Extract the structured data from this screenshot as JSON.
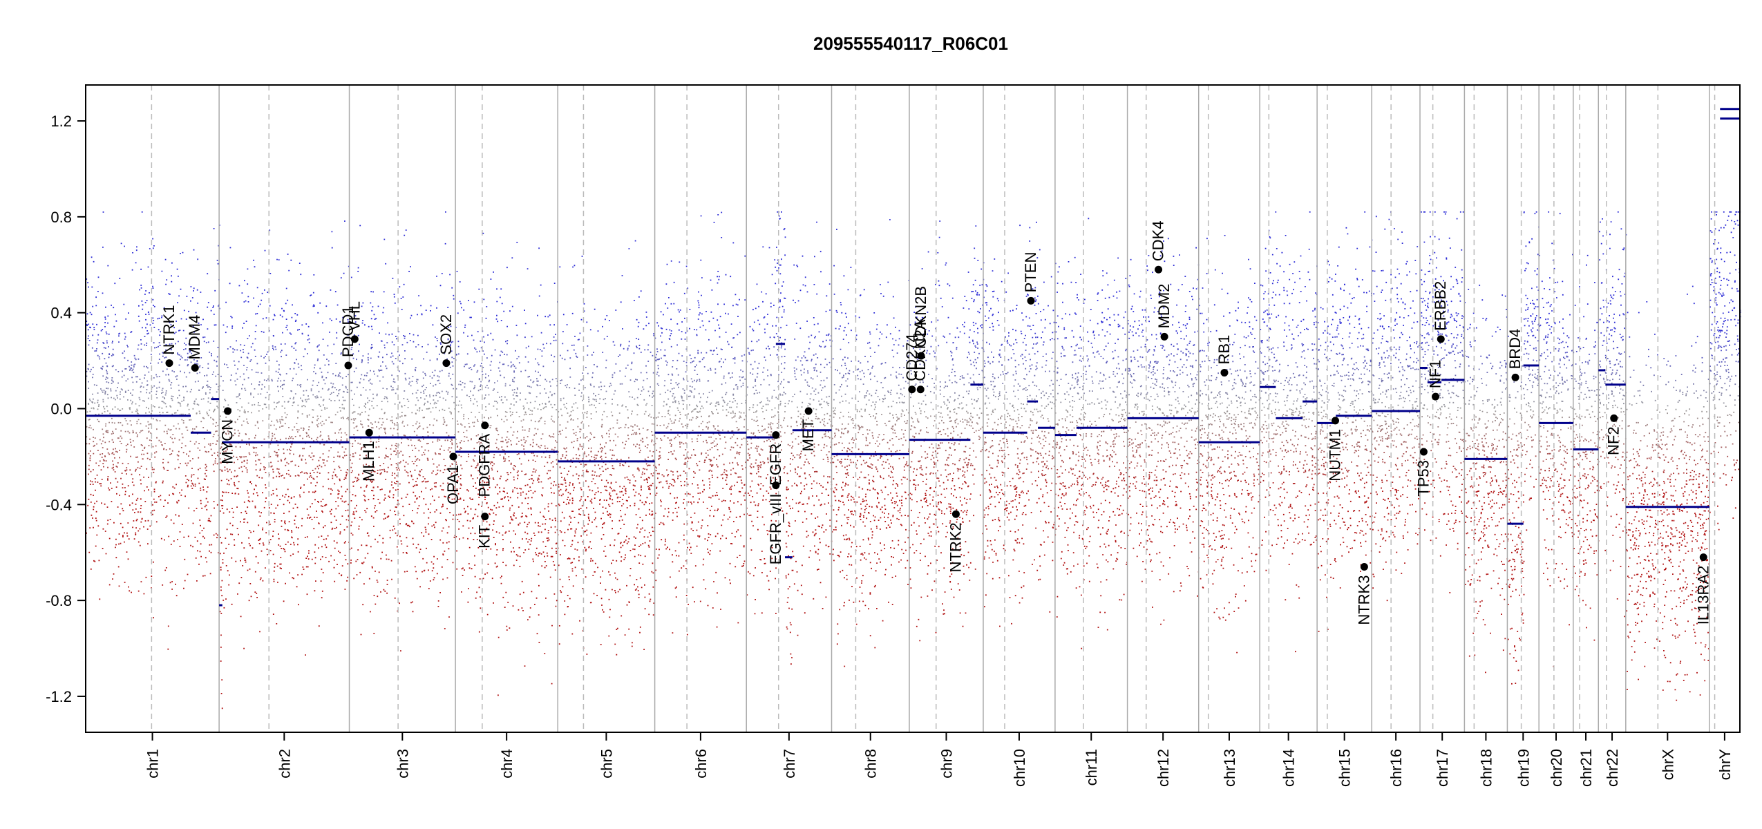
{
  "chart_data": {
    "type": "scatter",
    "title": "209555540117_R06C01",
    "xlabel": "",
    "ylabel": "",
    "ylim": [
      -1.35,
      1.35
    ],
    "y_ticks": [
      -1.2,
      -0.8,
      -0.4,
      0.0,
      0.4,
      0.8,
      1.2
    ],
    "y_tick_labels": [
      "-1.2",
      "-0.8",
      "-0.4",
      "0.0",
      "0.4",
      "0.8",
      "1.2"
    ],
    "colors": {
      "gain": "#2b2bd6",
      "loss": "#b01010",
      "neutral": "#9a9a9a",
      "segment": "#00008b",
      "gene_point": "#000000",
      "border": "#000000",
      "chrom_line": "#aaaaaa",
      "centromere_line": "#bbbbbb"
    },
    "chromosomes": [
      {
        "name": "chr1",
        "size": 249,
        "centromere": 123,
        "segments": [
          {
            "start": 0,
            "end": 196,
            "value": -0.03
          },
          {
            "start": 196,
            "end": 234,
            "value": -0.1
          },
          {
            "start": 234,
            "end": 249,
            "value": 0.04
          }
        ]
      },
      {
        "name": "chr2",
        "size": 243,
        "centromere": 93,
        "segments": [
          {
            "start": 0,
            "end": 6,
            "value": -0.82
          },
          {
            "start": 6,
            "end": 243,
            "value": -0.14
          }
        ]
      },
      {
        "name": "chr3",
        "size": 198,
        "centromere": 91,
        "segments": [
          {
            "start": 0,
            "end": 198,
            "value": -0.12
          }
        ]
      },
      {
        "name": "chr4",
        "size": 191,
        "centromere": 50,
        "segments": [
          {
            "start": 0,
            "end": 191,
            "value": -0.18
          }
        ]
      },
      {
        "name": "chr5",
        "size": 181,
        "centromere": 48,
        "segments": [
          {
            "start": 0,
            "end": 181,
            "value": -0.22
          }
        ]
      },
      {
        "name": "chr6",
        "size": 171,
        "centromere": 60,
        "segments": [
          {
            "start": 0,
            "end": 171,
            "value": -0.1
          }
        ]
      },
      {
        "name": "chr7",
        "size": 159,
        "centromere": 60,
        "segments": [
          {
            "start": 0,
            "end": 55,
            "value": -0.12
          },
          {
            "start": 55,
            "end": 72,
            "value": 0.27
          },
          {
            "start": 72,
            "end": 86,
            "value": -0.62
          },
          {
            "start": 86,
            "end": 159,
            "value": -0.09
          }
        ]
      },
      {
        "name": "chr8",
        "size": 145,
        "centromere": 45,
        "segments": [
          {
            "start": 0,
            "end": 145,
            "value": -0.19
          }
        ]
      },
      {
        "name": "chr9",
        "size": 138,
        "centromere": 50,
        "segments": [
          {
            "start": 0,
            "end": 114,
            "value": -0.13
          },
          {
            "start": 114,
            "end": 138,
            "value": 0.1
          }
        ]
      },
      {
        "name": "chr10",
        "size": 134,
        "centromere": 40,
        "segments": [
          {
            "start": 0,
            "end": 82,
            "value": -0.1
          },
          {
            "start": 82,
            "end": 102,
            "value": 0.03
          },
          {
            "start": 102,
            "end": 134,
            "value": -0.08
          }
        ]
      },
      {
        "name": "chr11",
        "size": 135,
        "centromere": 53,
        "segments": [
          {
            "start": 0,
            "end": 40,
            "value": -0.11
          },
          {
            "start": 40,
            "end": 135,
            "value": -0.08
          }
        ]
      },
      {
        "name": "chr12",
        "size": 133,
        "centromere": 35,
        "segments": [
          {
            "start": 0,
            "end": 133,
            "value": -0.04
          }
        ]
      },
      {
        "name": "chr13",
        "size": 114,
        "centromere": 18,
        "segments": [
          {
            "start": 0,
            "end": 114,
            "value": -0.14
          }
        ]
      },
      {
        "name": "chr14",
        "size": 107,
        "centromere": 17,
        "segments": [
          {
            "start": 0,
            "end": 30,
            "value": 0.09
          },
          {
            "start": 30,
            "end": 80,
            "value": -0.04
          },
          {
            "start": 80,
            "end": 107,
            "value": 0.03
          }
        ]
      },
      {
        "name": "chr15",
        "size": 102,
        "centromere": 19,
        "segments": [
          {
            "start": 0,
            "end": 35,
            "value": -0.06
          },
          {
            "start": 35,
            "end": 102,
            "value": -0.03
          }
        ]
      },
      {
        "name": "chr16",
        "size": 90,
        "centromere": 36,
        "segments": [
          {
            "start": 0,
            "end": 90,
            "value": -0.01
          }
        ]
      },
      {
        "name": "chr17",
        "size": 83,
        "centromere": 24,
        "segments": [
          {
            "start": 0,
            "end": 14,
            "value": 0.17
          },
          {
            "start": 14,
            "end": 40,
            "value": 0.11
          },
          {
            "start": 40,
            "end": 83,
            "value": 0.12
          }
        ]
      },
      {
        "name": "chr18",
        "size": 80,
        "centromere": 18,
        "segments": [
          {
            "start": 0,
            "end": 80,
            "value": -0.21
          }
        ]
      },
      {
        "name": "chr19",
        "size": 59,
        "centromere": 26,
        "segments": [
          {
            "start": 0,
            "end": 30,
            "value": -0.48
          },
          {
            "start": 30,
            "end": 59,
            "value": 0.18
          }
        ]
      },
      {
        "name": "chr20",
        "size": 64,
        "centromere": 28,
        "segments": [
          {
            "start": 0,
            "end": 64,
            "value": -0.06
          }
        ]
      },
      {
        "name": "chr21",
        "size": 47,
        "centromere": 12,
        "segments": [
          {
            "start": 0,
            "end": 47,
            "value": -0.17
          }
        ]
      },
      {
        "name": "chr22",
        "size": 51,
        "centromere": 15,
        "segments": [
          {
            "start": 0,
            "end": 13,
            "value": 0.16
          },
          {
            "start": 13,
            "end": 51,
            "value": 0.1
          }
        ]
      },
      {
        "name": "chrX",
        "size": 156,
        "centromere": 60,
        "segments": [
          {
            "start": 0,
            "end": 156,
            "value": -0.41
          }
        ]
      },
      {
        "name": "chrY",
        "size": 57,
        "centromere": 10,
        "segments": [
          {
            "start": 20,
            "end": 57,
            "value": 1.21
          },
          {
            "start": 20,
            "end": 57,
            "value": 1.25
          }
        ]
      }
    ],
    "genes": [
      {
        "name": "NTRK1",
        "chrom": "chr1",
        "pos": 156,
        "value": 0.19,
        "label_side": "above"
      },
      {
        "name": "MDM4",
        "chrom": "chr1",
        "pos": 204,
        "value": 0.17,
        "label_side": "above"
      },
      {
        "name": "MYCN",
        "chrom": "chr2",
        "pos": 16,
        "value": -0.01,
        "label_side": "below"
      },
      {
        "name": "PDCD1",
        "chrom": "chr2",
        "pos": 241,
        "value": 0.18,
        "label_side": "above"
      },
      {
        "name": "VHL",
        "chrom": "chr3",
        "pos": 10,
        "value": 0.29,
        "label_side": "above"
      },
      {
        "name": "MLH1",
        "chrom": "chr3",
        "pos": 37,
        "value": -0.1,
        "label_side": "below"
      },
      {
        "name": "SOX2",
        "chrom": "chr3",
        "pos": 181,
        "value": 0.19,
        "label_side": "above"
      },
      {
        "name": "OPA1",
        "chrom": "chr3",
        "pos": 194,
        "value": -0.2,
        "label_side": "below"
      },
      {
        "name": "PDGFRA",
        "chrom": "chr4",
        "pos": 55,
        "value": -0.07,
        "label_side": "below"
      },
      {
        "name": "KIT",
        "chrom": "chr4",
        "pos": 55,
        "value": -0.45,
        "label_side": "below"
      },
      {
        "name": "EGFR",
        "chrom": "chr7",
        "pos": 55,
        "value": -0.11,
        "label_side": "below"
      },
      {
        "name": "EGFR_vIII",
        "chrom": "chr7",
        "pos": 55,
        "value": -0.32,
        "label_side": "below"
      },
      {
        "name": "MET",
        "chrom": "chr7",
        "pos": 116,
        "value": -0.01,
        "label_side": "below"
      },
      {
        "name": "CD274",
        "chrom": "chr9",
        "pos": 5,
        "value": 0.08,
        "label_side": "above"
      },
      {
        "name": "CDKN2A",
        "chrom": "chr9",
        "pos": 21,
        "value": 0.08,
        "label_side": "above"
      },
      {
        "name": "CDKN2B",
        "chrom": "chr9",
        "pos": 22,
        "value": 0.22,
        "label_side": "above"
      },
      {
        "name": "NTRK2",
        "chrom": "chr9",
        "pos": 87,
        "value": -0.44,
        "label_side": "below"
      },
      {
        "name": "PTEN",
        "chrom": "chr10",
        "pos": 89,
        "value": 0.45,
        "label_side": "above"
      },
      {
        "name": "CDK4",
        "chrom": "chr12",
        "pos": 58,
        "value": 0.58,
        "label_side": "above"
      },
      {
        "name": "MDM2",
        "chrom": "chr12",
        "pos": 69,
        "value": 0.3,
        "label_side": "above"
      },
      {
        "name": "RB1",
        "chrom": "chr13",
        "pos": 48,
        "value": 0.15,
        "label_side": "above"
      },
      {
        "name": "NUTM1",
        "chrom": "chr15",
        "pos": 34,
        "value": -0.05,
        "label_side": "below"
      },
      {
        "name": "NTRK3",
        "chrom": "chr15",
        "pos": 88,
        "value": -0.66,
        "label_side": "below"
      },
      {
        "name": "TP53",
        "chrom": "chr17",
        "pos": 7,
        "value": -0.18,
        "label_side": "below"
      },
      {
        "name": "NF1",
        "chrom": "chr17",
        "pos": 29,
        "value": 0.05,
        "label_side": "above"
      },
      {
        "name": "ERBB2",
        "chrom": "chr17",
        "pos": 39,
        "value": 0.29,
        "label_side": "above"
      },
      {
        "name": "BRD4",
        "chrom": "chr19",
        "pos": 15,
        "value": 0.13,
        "label_side": "above"
      },
      {
        "name": "NF2",
        "chrom": "chr22",
        "pos": 29,
        "value": -0.04,
        "label_side": "below"
      },
      {
        "name": "IL13RA2",
        "chrom": "chrX",
        "pos": 145,
        "value": -0.62,
        "label_side": "below"
      }
    ]
  }
}
